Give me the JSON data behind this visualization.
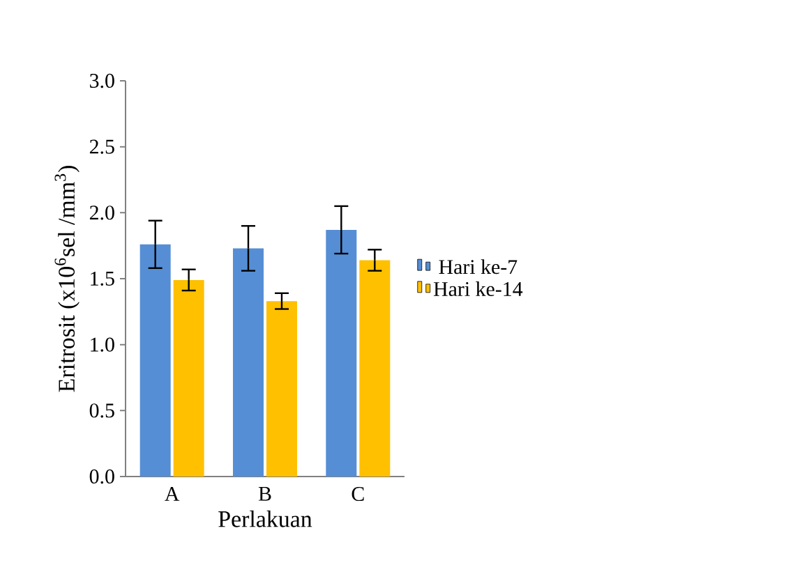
{
  "chart_data": {
    "type": "bar",
    "xlabel": "Perlakuan",
    "ylabel": "Eritrosit  (x10$^{6}$sel /mm$^{3}$)",
    "categories": [
      "A",
      "B",
      "C"
    ],
    "series": [
      {
        "name": "Hari ke-7",
        "color": "#558ed5",
        "values": [
          1.76,
          1.73,
          1.87
        ],
        "errors": [
          0.18,
          0.17,
          0.18
        ]
      },
      {
        "name": "Hari ke-14",
        "color": "#ffc000",
        "values": [
          1.49,
          1.33,
          1.64
        ],
        "errors": [
          0.08,
          0.06,
          0.08
        ]
      }
    ],
    "ylim": [
      0,
      3
    ],
    "yticks": [
      {
        "value": 0,
        "label": "0.0"
      },
      {
        "value": 0.5,
        "label": "0.5"
      },
      {
        "value": 1,
        "label": "1.0"
      },
      {
        "value": 1.5,
        "label": "1.5"
      },
      {
        "value": 2,
        "label": "2.0"
      },
      {
        "value": 2.5,
        "label": "2.5"
      },
      {
        "value": 3,
        "label": "3.0"
      }
    ],
    "grid": false,
    "legend": "right"
  }
}
